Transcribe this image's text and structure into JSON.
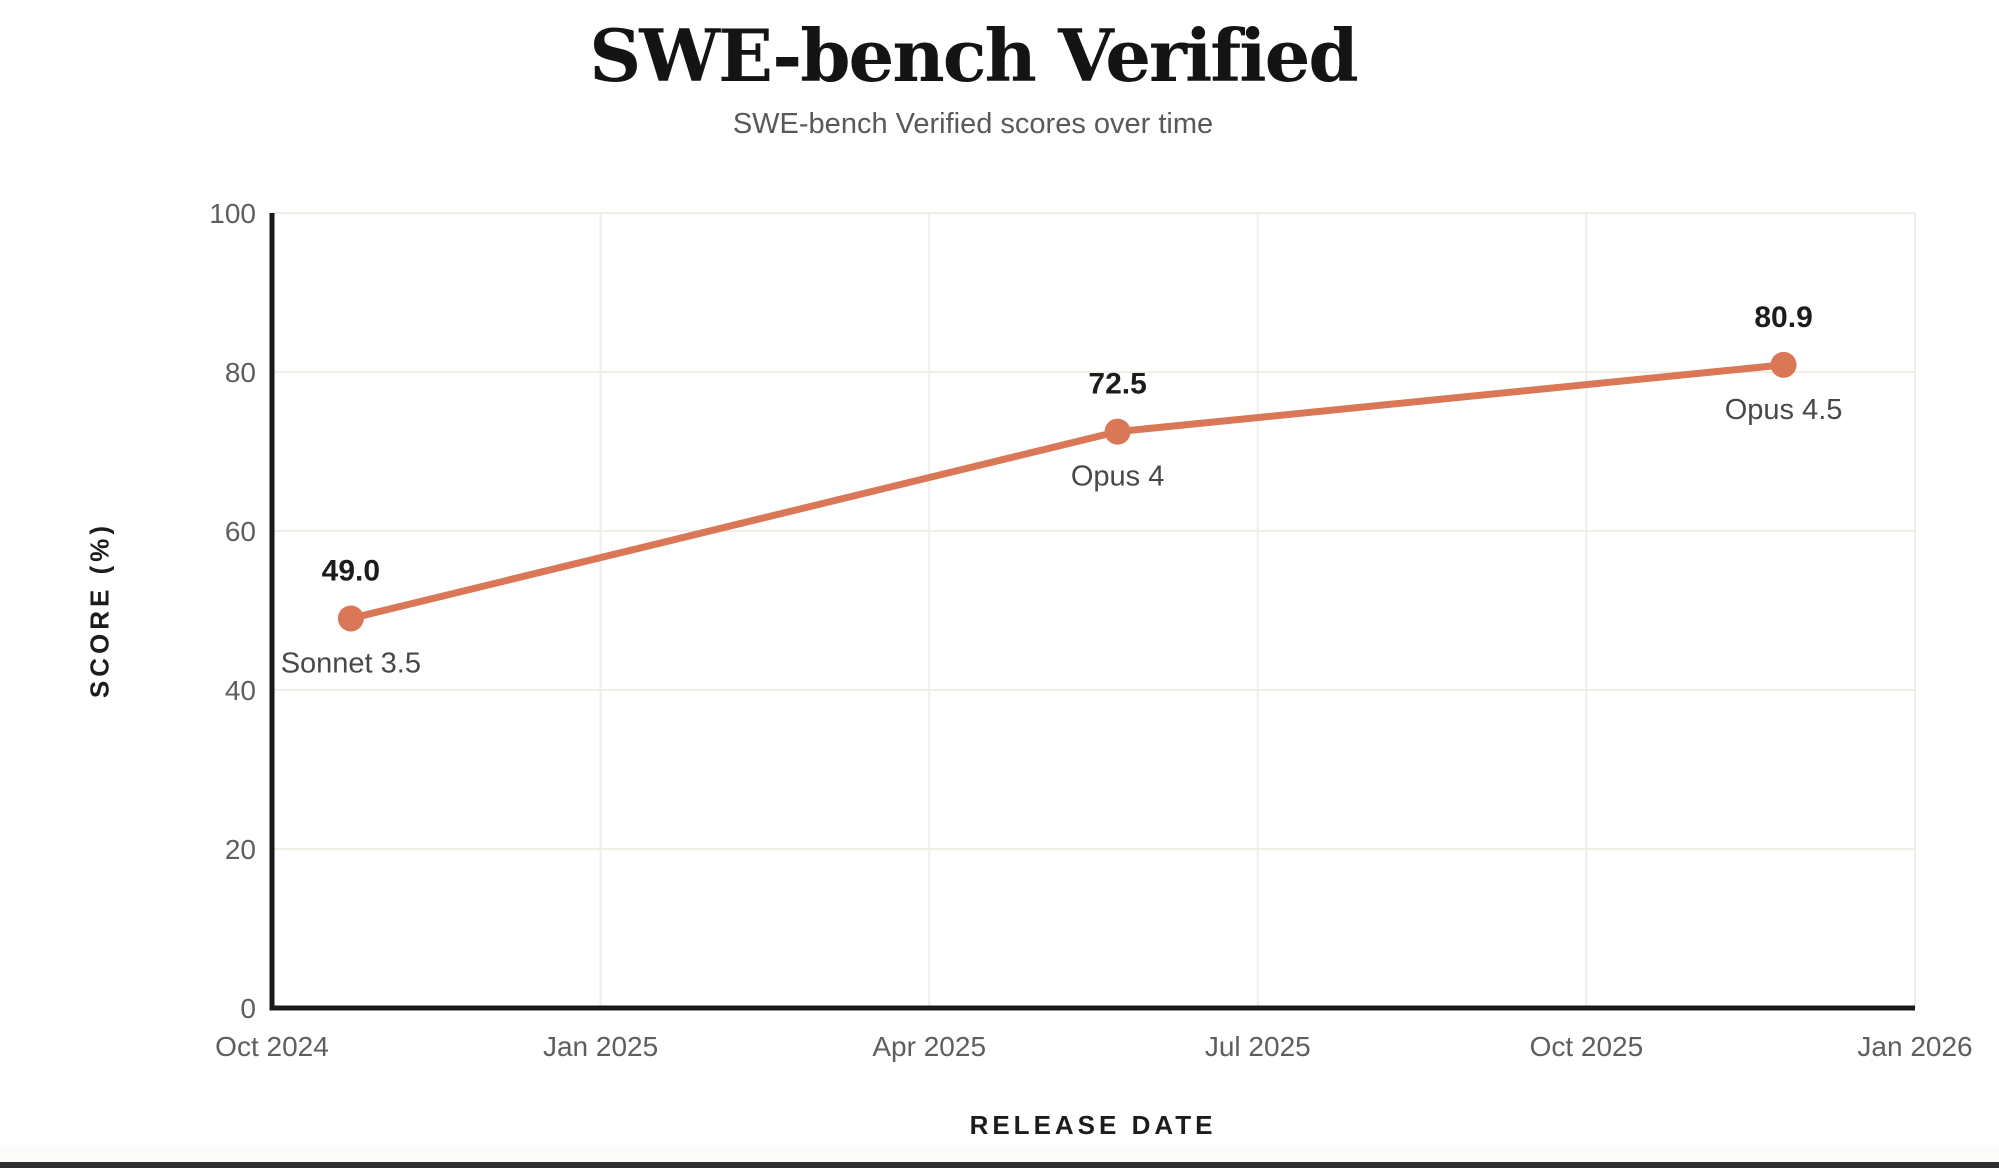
{
  "chart_data": {
    "type": "line",
    "title": "SWE-bench Verified",
    "subtitle": "SWE-bench Verified scores over time",
    "xlabel": "RELEASE DATE",
    "ylabel": "SCORE (%)",
    "ylim": [
      0,
      100
    ],
    "y_ticks": [
      0,
      20,
      40,
      60,
      80,
      100
    ],
    "x_ticks": [
      {
        "label": "Oct 2024",
        "month_offset": 0
      },
      {
        "label": "Jan 2025",
        "month_offset": 3
      },
      {
        "label": "Apr 2025",
        "month_offset": 6
      },
      {
        "label": "Jul 2025",
        "month_offset": 9
      },
      {
        "label": "Oct 2025",
        "month_offset": 12
      },
      {
        "label": "Jan 2026",
        "month_offset": 15
      }
    ],
    "grid": true,
    "legend": "none",
    "series": [
      {
        "name": "SWE-bench Verified score",
        "color": "#D97757",
        "points": [
          {
            "label": "Sonnet 3.5",
            "value": 49.0,
            "value_label": "49.0",
            "month_offset": 0.72
          },
          {
            "label": "Opus 4",
            "value": 72.5,
            "value_label": "72.5",
            "month_offset": 7.72
          },
          {
            "label": "Opus 4.5",
            "value": 80.9,
            "value_label": "80.9",
            "month_offset": 13.8
          }
        ]
      }
    ]
  },
  "colors": {
    "accent": "#D97757",
    "grid": "#f1eee8",
    "axis": "#1a1a1a",
    "tick_text": "#5e5e5e",
    "value_text": "#1c1c1c",
    "point_label_text": "#484848",
    "background": "#ffffff"
  }
}
